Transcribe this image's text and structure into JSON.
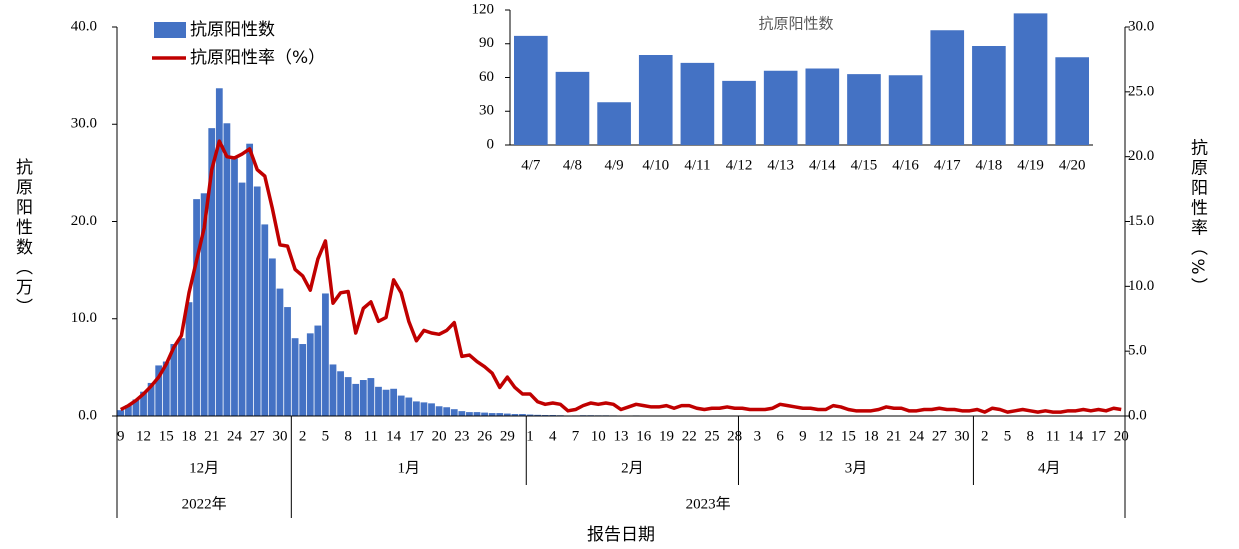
{
  "chart_data": [
    {
      "type": "bar",
      "x_label": "报告日期",
      "y_label": "抗原阳性数（万）",
      "y2_label": "抗原阳性率（%）",
      "categories": [
        "9",
        null,
        null,
        "12",
        null,
        null,
        "15",
        null,
        null,
        "18",
        null,
        null,
        "21",
        null,
        null,
        "24",
        null,
        null,
        "27",
        null,
        null,
        "30",
        null,
        null,
        "2",
        null,
        null,
        "5",
        null,
        null,
        "8",
        null,
        null,
        "11",
        null,
        null,
        "14",
        null,
        null,
        "17",
        null,
        null,
        "20",
        null,
        null,
        "23",
        null,
        null,
        "26",
        null,
        null,
        "29",
        null,
        null,
        "1",
        null,
        null,
        "4",
        null,
        null,
        "7",
        null,
        null,
        "10",
        null,
        null,
        "13",
        null,
        null,
        "16",
        null,
        null,
        "19",
        null,
        null,
        "22",
        null,
        null,
        "25",
        null,
        null,
        "28",
        null,
        null,
        "3",
        null,
        null,
        "6",
        null,
        null,
        "9",
        null,
        null,
        "12",
        null,
        null,
        "15",
        null,
        null,
        "18",
        null,
        null,
        "21",
        null,
        null,
        "24",
        null,
        null,
        "27",
        null,
        null,
        "30",
        null,
        null,
        "2",
        null,
        null,
        "5",
        null,
        null,
        "8",
        null,
        null,
        "11",
        null,
        null,
        "14",
        null,
        null,
        "17",
        null,
        null,
        "20"
      ],
      "months": [
        {
          "label": "12月",
          "days": 23
        },
        {
          "label": "1月",
          "days": 31
        },
        {
          "label": "2月",
          "days": 28
        },
        {
          "label": "3月",
          "days": 31
        },
        {
          "label": "4月",
          "days": 20
        }
      ],
      "years": [
        {
          "label": "2022年",
          "months": 1
        },
        {
          "label": "2023年",
          "months": 4
        }
      ],
      "series": [
        {
          "name": "抗原阳性数",
          "color": "#4472c4",
          "values": [
            0.6,
            1.1,
            1.7,
            2.5,
            3.4,
            5.2,
            5.6,
            7.4,
            8.0,
            11.7,
            22.3,
            22.9,
            29.6,
            33.7,
            30.1,
            26.5,
            24.0,
            28.0,
            23.6,
            19.7,
            16.2,
            13.1,
            11.2,
            8.0,
            7.4,
            8.5,
            9.3,
            12.6,
            5.3,
            4.6,
            4.0,
            3.3,
            3.7,
            3.9,
            3.0,
            2.7,
            2.8,
            2.1,
            1.9,
            1.5,
            1.4,
            1.3,
            1.0,
            0.9,
            0.7,
            0.5,
            0.4,
            0.4,
            0.35,
            0.3,
            0.3,
            0.25,
            0.2,
            0.2,
            0.15,
            0.12,
            0.1,
            0.1,
            0.08,
            0.05,
            0.06,
            0.08,
            0.08,
            0.07,
            0.07,
            0.06,
            0.04,
            0.05,
            0.06,
            0.05,
            0.04,
            0.04,
            0.04,
            0.03,
            0.04,
            0.04,
            0.03,
            0.02,
            0.03,
            0.03,
            0.03,
            0.03,
            0.02,
            0.02,
            0.02,
            0.02,
            0.02,
            0.03,
            0.03,
            0.02,
            0.02,
            0.02,
            0.02,
            0.02,
            0.02,
            0.02,
            0.02,
            0.01,
            0.01,
            0.01,
            0.02,
            0.02,
            0.02,
            0.02,
            0.01,
            0.01,
            0.01,
            0.01,
            0.02,
            0.01,
            0.01,
            0.01,
            0.01,
            0.01,
            0.01,
            0.01,
            0.01,
            0.01,
            0.01,
            0.01,
            0.01,
            0.01,
            0.01,
            0.01,
            0.01,
            0.01,
            0.01,
            0.01,
            0.01,
            0.01,
            0.01,
            0.01,
            0.01
          ]
        },
        {
          "name": "抗原阳性率（%）",
          "color": "#c00000",
          "type": "line",
          "axis": "y2",
          "values": [
            0.5,
            0.8,
            1.2,
            1.7,
            2.3,
            3.0,
            4.0,
            5.3,
            6.2,
            9.5,
            12,
            14.5,
            19,
            21.2,
            20,
            19.9,
            20.2,
            20.6,
            19,
            18.5,
            16,
            13.2,
            13.1,
            11.3,
            10.8,
            9.7,
            12.1,
            13.5,
            8.7,
            9.5,
            9.6,
            6.4,
            8.3,
            8.8,
            7.3,
            7.6,
            10.5,
            9.5,
            7.3,
            5.8,
            6.6,
            6.4,
            6.3,
            6.6,
            7.2,
            4.6,
            4.7,
            4.2,
            3.8,
            3.3,
            2.2,
            3.0,
            2.2,
            1.7,
            1.7,
            1.1,
            0.9,
            1.0,
            0.9,
            0.4,
            0.5,
            0.8,
            1.0,
            0.9,
            1.0,
            0.9,
            0.5,
            0.7,
            0.9,
            0.8,
            0.7,
            0.7,
            0.8,
            0.6,
            0.8,
            0.8,
            0.6,
            0.5,
            0.6,
            0.6,
            0.7,
            0.6,
            0.6,
            0.5,
            0.5,
            0.5,
            0.6,
            0.9,
            0.8,
            0.7,
            0.6,
            0.6,
            0.5,
            0.5,
            0.8,
            0.7,
            0.5,
            0.4,
            0.4,
            0.4,
            0.5,
            0.7,
            0.6,
            0.6,
            0.4,
            0.4,
            0.5,
            0.5,
            0.6,
            0.5,
            0.5,
            0.4,
            0.4,
            0.5,
            0.3,
            0.6,
            0.5,
            0.3,
            0.4,
            0.5,
            0.4,
            0.3,
            0.4,
            0.3,
            0.3,
            0.4,
            0.4,
            0.5,
            0.4,
            0.5,
            0.4,
            0.6,
            0.5
          ]
        }
      ],
      "ylim": [
        0,
        40
      ],
      "yticks": [
        {
          "value": 0,
          "label": "0.0"
        },
        {
          "value": 10,
          "label": "10.0"
        },
        {
          "value": 20,
          "label": "20.0"
        },
        {
          "value": 30,
          "label": "30.0"
        },
        {
          "value": 40,
          "label": "40.0"
        }
      ],
      "y2lim": [
        0,
        30
      ],
      "y2ticks": [
        {
          "value": 0,
          "label": "0.0"
        },
        {
          "value": 5,
          "label": "5.0"
        },
        {
          "value": 10,
          "label": "10.0"
        },
        {
          "value": 15,
          "label": "15.0"
        },
        {
          "value": 20,
          "label": "20.0"
        },
        {
          "value": 25,
          "label": "25.0"
        },
        {
          "value": 30,
          "label": "30.0"
        }
      ]
    },
    {
      "type": "bar",
      "title": "抗原阳性数",
      "categories": [
        "4/7",
        "4/8",
        "4/9",
        "4/10",
        "4/11",
        "4/12",
        "4/13",
        "4/14",
        "4/15",
        "4/16",
        "4/17",
        "4/18",
        "4/19",
        "4/20"
      ],
      "values": [
        97,
        65,
        38,
        80,
        73,
        57,
        66,
        68,
        63,
        62,
        102,
        88,
        117,
        78
      ],
      "color": "#4472c4",
      "ylim": [
        0,
        120
      ],
      "yticks": [
        0,
        30,
        60,
        90,
        120
      ]
    }
  ]
}
